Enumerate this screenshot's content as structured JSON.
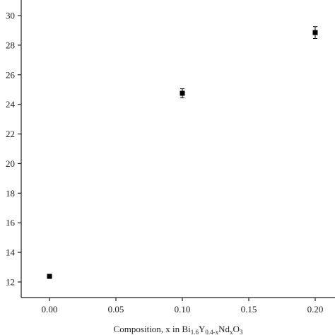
{
  "chart_data": {
    "type": "scatter",
    "x_label": [
      "Composition, x in Bi",
      "1.6",
      "Y",
      "0.4-x",
      "Nd",
      "x",
      "O",
      "3"
    ],
    "x": [
      0,
      0.1,
      0.2
    ],
    "values": [
      12.38,
      24.75,
      28.85
    ],
    "errors": [
      0.1,
      0.3,
      0.4
    ],
    "color": "#000000",
    "xlim": [
      -0.0213,
      0.2149
    ],
    "ylim": [
      10.95,
      31.05
    ],
    "xticks": [
      {
        "value": 0,
        "label": "0.00"
      },
      {
        "value": 0.05,
        "label": "0.05"
      },
      {
        "value": 0.1,
        "label": "0.10"
      },
      {
        "value": 0.15,
        "label": "0.15"
      },
      {
        "value": 0.2,
        "label": "0.20"
      }
    ],
    "yticks": [
      12,
      14,
      16,
      18,
      20,
      22,
      24,
      26,
      28,
      30
    ]
  }
}
